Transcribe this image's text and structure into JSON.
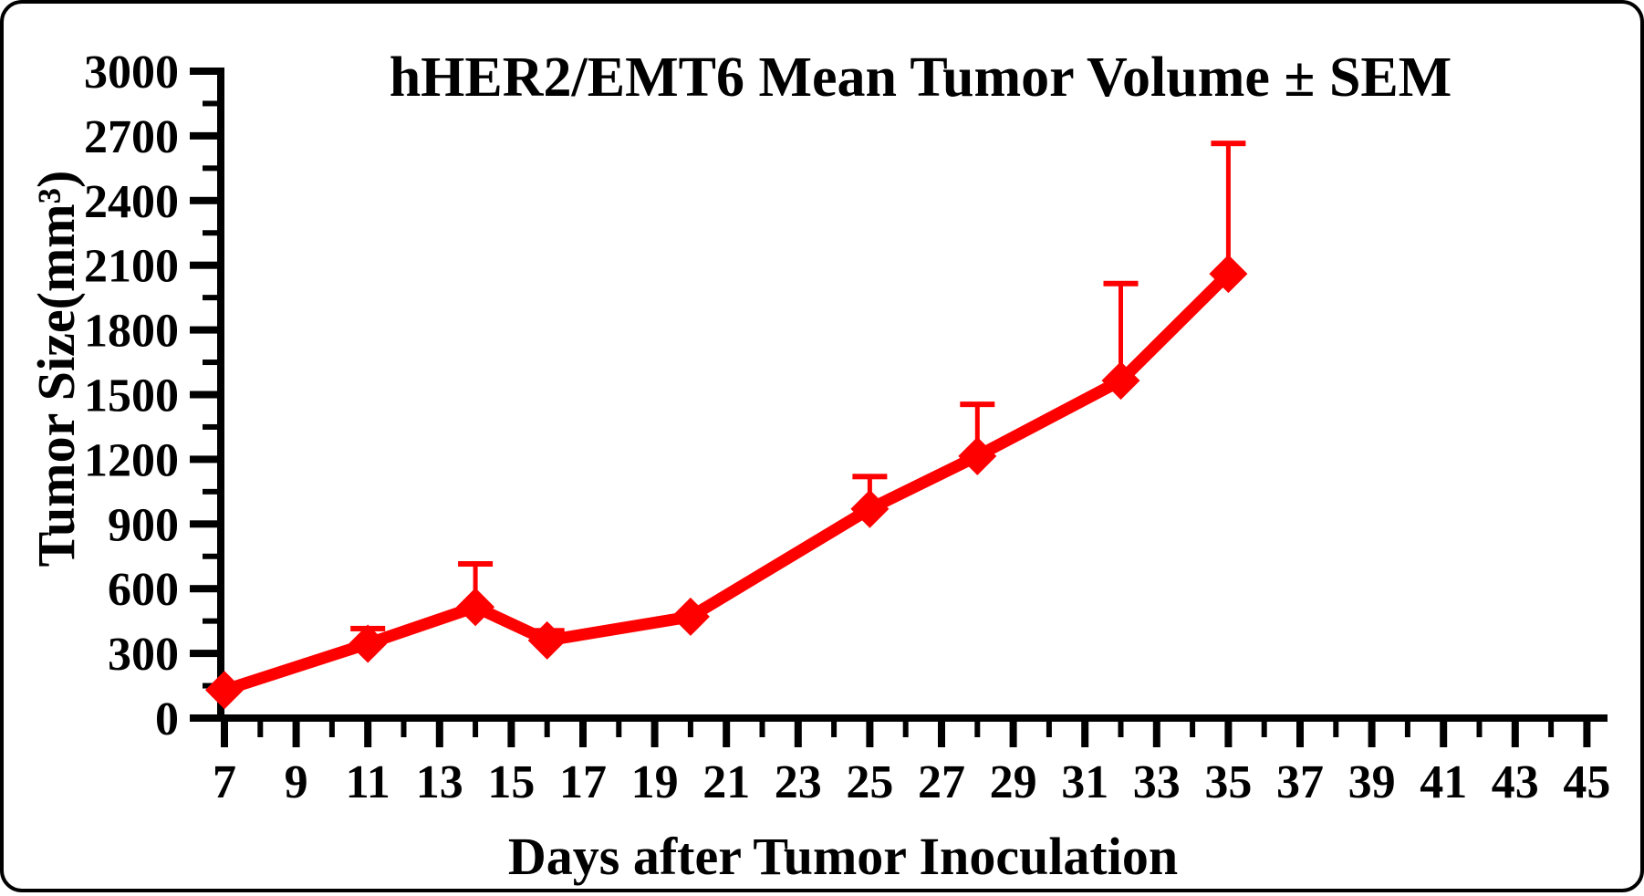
{
  "page": {
    "background": "#ffffff",
    "frame_border_color": "#000000"
  },
  "chart_data": {
    "type": "line",
    "title": "hHER2/EMT6 Mean Tumor Volume ± SEM",
    "xlabel": "Days after Tumor Inoculation",
    "ylabel": "Tumor Size(mm³)",
    "grid": false,
    "legend": "none",
    "axis_color": "#000000",
    "text_color": "#000000",
    "x_axis": {
      "min": 7,
      "max": 45,
      "labeled_tick_step": 2,
      "minor_tick_step": 1,
      "tick_labels": [
        "7",
        "9",
        "11",
        "13",
        "15",
        "17",
        "19",
        "21",
        "23",
        "25",
        "27",
        "29",
        "31",
        "33",
        "35",
        "37",
        "39",
        "41",
        "43",
        "45"
      ]
    },
    "y_axis": {
      "min": 0,
      "max": 3000,
      "major_tick_step": 300,
      "minor_tick_step": 150,
      "tick_labels": [
        "0",
        "300",
        "600",
        "900",
        "1200",
        "1500",
        "1800",
        "2100",
        "2400",
        "2700",
        "3000"
      ]
    },
    "series": [
      {
        "name": "hHER2/EMT6 mean tumor volume",
        "color": "#ff0000",
        "marker": "diamond",
        "x": [
          7,
          11,
          14,
          16,
          20,
          25,
          28,
          32,
          35
        ],
        "y": [
          130,
          345,
          515,
          360,
          470,
          970,
          1215,
          1565,
          2060
        ],
        "sem_upper": [
          0,
          70,
          200,
          45,
          0,
          150,
          240,
          450,
          605
        ]
      }
    ]
  }
}
